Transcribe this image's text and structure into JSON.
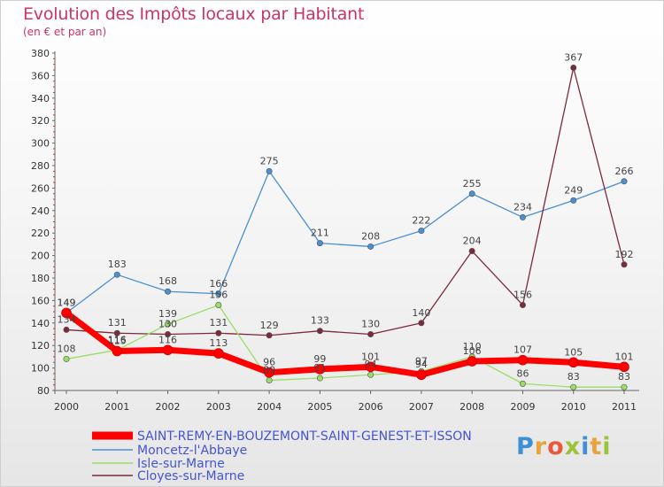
{
  "header": {
    "title": "Evolution des Impôts locaux par Habitant",
    "subtitle": "(en € et par an)"
  },
  "logo": {
    "letters": [
      "P",
      "r",
      "o",
      "x",
      "i",
      "t",
      "i"
    ],
    "colors": [
      "#3d8fd6",
      "#e8a33a",
      "#e85a3a",
      "#9bc43a",
      "#3d8fd6",
      "#e8a33a",
      "#9bc43a"
    ]
  },
  "chart_data": {
    "type": "line",
    "x": [
      "2000",
      "2001",
      "2002",
      "2003",
      "2004",
      "2005",
      "2006",
      "2007",
      "2008",
      "2009",
      "2010",
      "2011"
    ],
    "ylim": [
      80,
      380
    ],
    "yticks": [
      80,
      100,
      120,
      140,
      160,
      180,
      200,
      220,
      240,
      260,
      280,
      300,
      320,
      340,
      360,
      380
    ],
    "grid": false,
    "legend_position": "bottom-left",
    "series": [
      {
        "name": "SAINT-REMY-EN-BOUZEMONT-SAINT-GENEST-ET-ISSON",
        "color": "#ff0000",
        "values": [
          149,
          115,
          116,
          113,
          96,
          99,
          101,
          94,
          106,
          107,
          105,
          101
        ]
      },
      {
        "name": "Moncetz-l'Abbaye",
        "color": "#4a90d0",
        "values": [
          149,
          183,
          168,
          166,
          275,
          211,
          208,
          222,
          255,
          234,
          249,
          266
        ]
      },
      {
        "name": "Isle-sur-Marne",
        "color": "#99dd66",
        "values": [
          108,
          116,
          139,
          156,
          89,
          91,
          94,
          97,
          110,
          86,
          83,
          83
        ]
      },
      {
        "name": "Cloyes-sur-Marne",
        "color": "#7a2a3a",
        "values": [
          134,
          131,
          130,
          131,
          129,
          133,
          130,
          140,
          204,
          156,
          367,
          192
        ]
      }
    ]
  }
}
